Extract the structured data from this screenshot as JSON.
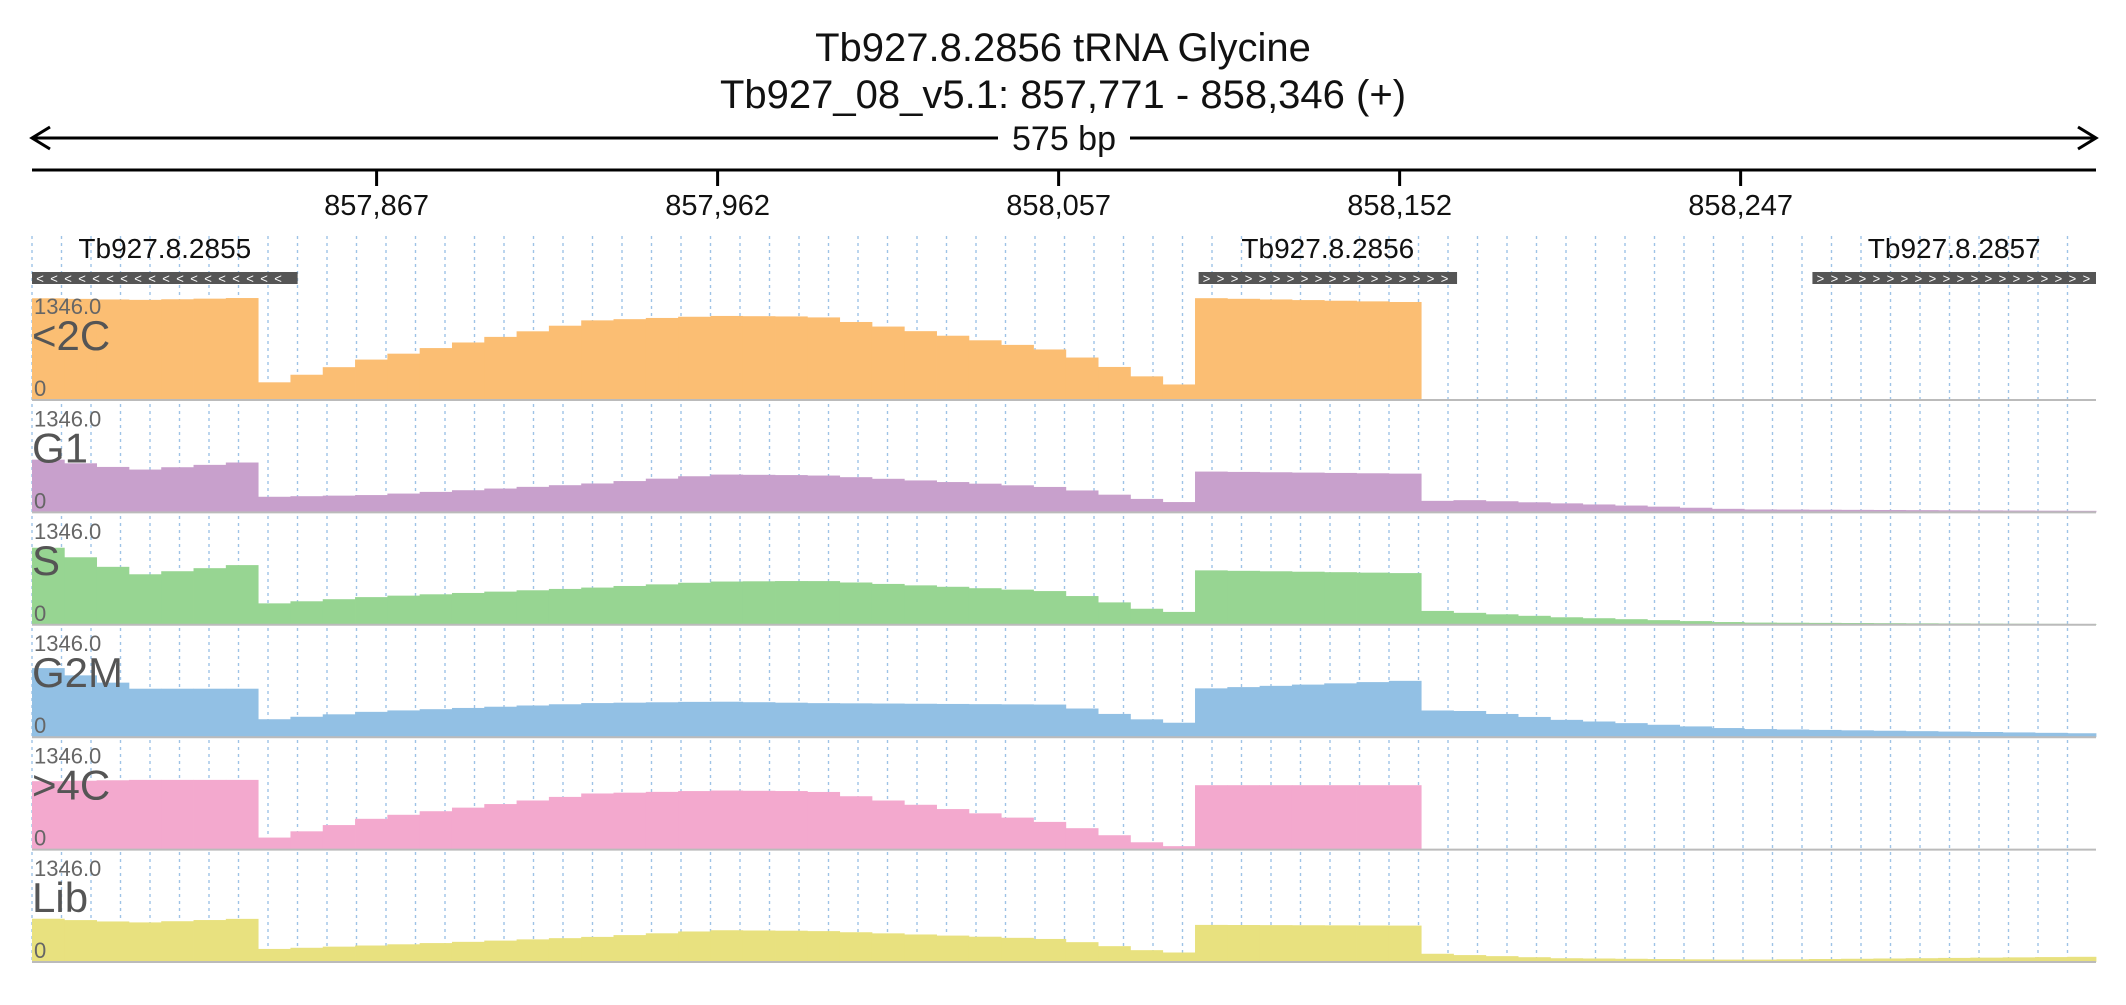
{
  "header": {
    "title": "Tb927.8.2856  tRNA Glycine",
    "locus": "Tb927_08_v5.1: 857,771 - 858,346 (+)",
    "span_label": "575 bp"
  },
  "chart_data": {
    "type": "area",
    "region": {
      "chromosome": "Tb927_08_v5.1",
      "start": 857771,
      "end": 858346,
      "strand": "+"
    },
    "x_ticks": [
      {
        "pos": 857867,
        "label": "857,867"
      },
      {
        "pos": 857962,
        "label": "857,962"
      },
      {
        "pos": 858057,
        "label": "858,057"
      },
      {
        "pos": 858152,
        "label": "858,152"
      },
      {
        "pos": 858247,
        "label": "858,247"
      }
    ],
    "genes": [
      {
        "name": "Tb927.8.2855",
        "start": 857771,
        "end": 857845,
        "strand": "-"
      },
      {
        "name": "Tb927.8.2856",
        "start": 858096,
        "end": 858168,
        "strand": "+"
      },
      {
        "name": "Tb927.8.2857",
        "start": 858267,
        "end": 858346,
        "strand": "+"
      }
    ],
    "ylim": [
      0,
      1346.0
    ],
    "y_max_label": "1346.0",
    "y_min_label": "0",
    "grid": "vertical dotted",
    "segment_edges": [
      857771,
      857801,
      857830,
      857836,
      857867,
      857928,
      858010,
      858086,
      858097,
      858157,
      858166,
      858183,
      858198,
      858248,
      858346
    ],
    "series": [
      {
        "name": "<2C",
        "color": "#fbbe73",
        "points": [
          [
            857771,
            1346
          ],
          [
            857801,
            1320
          ],
          [
            857830,
            1346
          ],
          [
            857831,
            150
          ],
          [
            857867,
            550
          ],
          [
            857928,
            1050
          ],
          [
            857962,
            1110
          ],
          [
            857990,
            1100
          ],
          [
            858057,
            650
          ],
          [
            858086,
            250
          ],
          [
            858096,
            150
          ],
          [
            858097,
            1346
          ],
          [
            858157,
            1290
          ],
          [
            858158,
            0
          ],
          [
            858346,
            0
          ]
        ]
      },
      {
        "name": "G1",
        "color": "#c8a0cc",
        "points": [
          [
            857771,
            720
          ],
          [
            857801,
            560
          ],
          [
            857830,
            660
          ],
          [
            857831,
            200
          ],
          [
            857867,
            230
          ],
          [
            857928,
            380
          ],
          [
            857962,
            500
          ],
          [
            857990,
            490
          ],
          [
            858057,
            330
          ],
          [
            858086,
            150
          ],
          [
            858096,
            120
          ],
          [
            858097,
            540
          ],
          [
            858157,
            510
          ],
          [
            858158,
            130
          ],
          [
            858166,
            170
          ],
          [
            858198,
            120
          ],
          [
            858248,
            40
          ],
          [
            858346,
            20
          ]
        ]
      },
      {
        "name": "S",
        "color": "#97d592",
        "points": [
          [
            857771,
            1080
          ],
          [
            857801,
            660
          ],
          [
            857830,
            790
          ],
          [
            857831,
            260
          ],
          [
            857867,
            370
          ],
          [
            857928,
            490
          ],
          [
            857962,
            570
          ],
          [
            857990,
            580
          ],
          [
            858057,
            440
          ],
          [
            858086,
            170
          ],
          [
            858096,
            170
          ],
          [
            858097,
            720
          ],
          [
            858157,
            680
          ],
          [
            858158,
            200
          ],
          [
            858166,
            170
          ],
          [
            858198,
            100
          ],
          [
            858248,
            30
          ],
          [
            858346,
            10
          ]
        ]
      },
      {
        "name": "G2M",
        "color": "#92c0e4",
        "points": [
          [
            857771,
            960
          ],
          [
            857801,
            640
          ],
          [
            857830,
            640
          ],
          [
            857831,
            210
          ],
          [
            857867,
            340
          ],
          [
            857928,
            450
          ],
          [
            857962,
            470
          ],
          [
            857990,
            450
          ],
          [
            858057,
            430
          ],
          [
            858086,
            200
          ],
          [
            858096,
            180
          ],
          [
            858097,
            640
          ],
          [
            858157,
            750
          ],
          [
            858158,
            330
          ],
          [
            858166,
            370
          ],
          [
            858198,
            230
          ],
          [
            858248,
            110
          ],
          [
            858346,
            50
          ]
        ]
      },
      {
        "name": ">4C",
        "color": "#f3a9ce",
        "points": [
          [
            857771,
            900
          ],
          [
            857801,
            920
          ],
          [
            857830,
            920
          ],
          [
            857831,
            90
          ],
          [
            857867,
            420
          ],
          [
            857928,
            740
          ],
          [
            857962,
            780
          ],
          [
            857990,
            770
          ],
          [
            858057,
            350
          ],
          [
            858086,
            50
          ],
          [
            858096,
            40
          ],
          [
            858097,
            850
          ],
          [
            858157,
            850
          ],
          [
            858158,
            0
          ],
          [
            858346,
            0
          ]
        ]
      },
      {
        "name": "Lib",
        "color": "#e8e17f",
        "points": [
          [
            857771,
            580
          ],
          [
            857801,
            520
          ],
          [
            857830,
            570
          ],
          [
            857831,
            160
          ],
          [
            857867,
            220
          ],
          [
            857928,
            330
          ],
          [
            857962,
            420
          ],
          [
            857990,
            410
          ],
          [
            858057,
            300
          ],
          [
            858086,
            130
          ],
          [
            858096,
            120
          ],
          [
            858097,
            490
          ],
          [
            858157,
            480
          ],
          [
            858158,
            120
          ],
          [
            858166,
            100
          ],
          [
            858198,
            50
          ],
          [
            858248,
            30
          ],
          [
            858346,
            70
          ]
        ]
      }
    ]
  }
}
